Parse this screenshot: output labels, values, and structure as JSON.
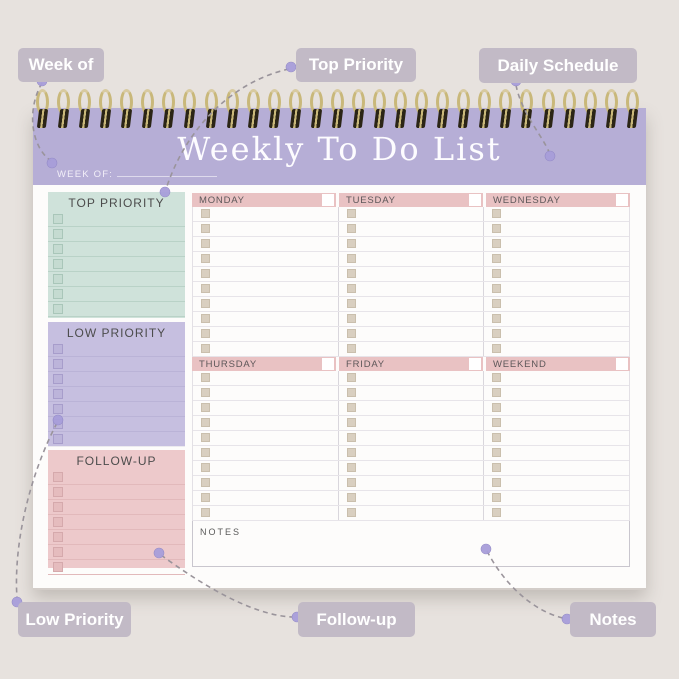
{
  "callouts": {
    "week_of": "Week of",
    "top_priority": "Top Priority",
    "daily_schedule": "Daily Schedule",
    "low_priority": "Low Priority",
    "follow_up": "Follow-up",
    "notes": "Notes"
  },
  "pad": {
    "title": "Weekly To Do List",
    "week_of_label": "WEEK OF:",
    "side_sections": [
      {
        "id": "top-priority",
        "title": "TOP PRIORITY",
        "rows": 7
      },
      {
        "id": "low-priority",
        "title": "LOW PRIORITY",
        "rows": 7
      },
      {
        "id": "follow-up",
        "title": "FOLLOW-UP",
        "rows": 7
      }
    ],
    "day_rows": [
      [
        "MONDAY",
        "TUESDAY",
        "WEDNESDAY"
      ],
      [
        "THURSDAY",
        "FRIDAY",
        "WEEKEND"
      ]
    ],
    "rows_per_day": 10,
    "notes_label": "NOTES",
    "spiral_coils": 29
  },
  "colors": {
    "background": "#e7e2de",
    "header_lavender": "#b6aed6",
    "mint_box": "#cfe2da",
    "lavender_box": "#c6bfe0",
    "pink_box": "#edc9cb",
    "day_header_pink": "#e9c2c3",
    "badge_gray": "#c2bac6",
    "dot_lavender": "#a89eda",
    "connector_gray": "#9a949b",
    "spiral_gold": "#c9b87a"
  }
}
